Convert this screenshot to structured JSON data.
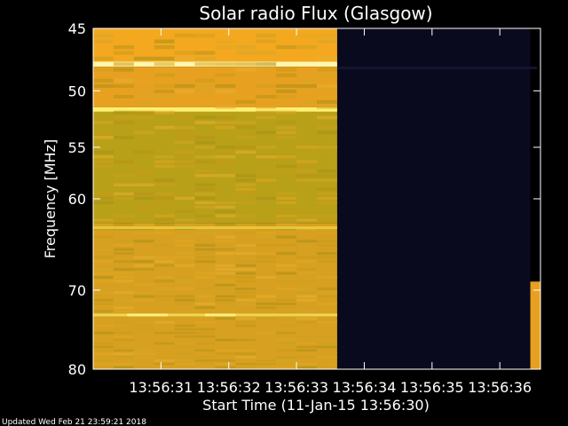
{
  "chart_data": {
    "type": "heatmap",
    "title": "Solar radio Flux (Glasgow)",
    "xlabel": "Start Time (11-Jan-15 13:56:30)",
    "ylabel": "Frequency [MHz]",
    "xlim": [
      0,
      6.6
    ],
    "ylim": [
      80,
      45
    ],
    "x_ticks": [
      {
        "value": 1,
        "label": "13:56:31"
      },
      {
        "value": 2,
        "label": "13:56:32"
      },
      {
        "value": 3,
        "label": "13:56:33"
      },
      {
        "value": 4,
        "label": "13:56:34"
      },
      {
        "value": 5,
        "label": "13:56:35"
      },
      {
        "value": 6,
        "label": "13:56:36"
      }
    ],
    "y_ticks": [
      45,
      50,
      55,
      60,
      70,
      80
    ],
    "y_scale": "log",
    "data_end_time": 3.6,
    "segments": [
      {
        "name": "",
        "time_range": [
          0,
          3.6
        ],
        "freq_range": [
          45,
          80
        ],
        "color": "#D9A020",
        "description": ""
      },
      {
        "name": "",
        "time_range": [
          3.6,
          6.45
        ],
        "freq_range": [
          45,
          80
        ],
        "color": "#0A0A1E"
      },
      {
        "name": "",
        "time_range": [
          6.45,
          6.6
        ],
        "freq_range": [
          69,
          80
        ],
        "color": "#E8A020"
      }
    ],
    "bands": [
      {
        "freq_range": [
          45.0,
          47.6
        ],
        "color": "#F4A820"
      },
      {
        "freq_range": [
          47.6,
          48.0
        ],
        "color": "#FFF6B0"
      },
      {
        "freq_range": [
          48.0,
          51.4
        ],
        "color": "#E8A020"
      },
      {
        "freq_range": [
          51.4,
          51.8
        ],
        "color": "#FFF070"
      },
      {
        "freq_range": [
          51.8,
          62.5
        ],
        "color": "#B8A018"
      },
      {
        "freq_range": [
          62.5,
          80.0
        ],
        "color": "#D8A020"
      }
    ],
    "highlight_lines": [
      {
        "freq": 63.0,
        "color": "#E8D040"
      },
      {
        "freq": 73.0,
        "color": "#F0E060"
      }
    ],
    "colors": {
      "background": "#000000",
      "no_data": "#0A0A1E",
      "axis": "#FFFFFF",
      "text": "#FFFFFF"
    }
  },
  "footer": {
    "updated": "Updated Wed Feb 21 23:59:21 2018"
  }
}
